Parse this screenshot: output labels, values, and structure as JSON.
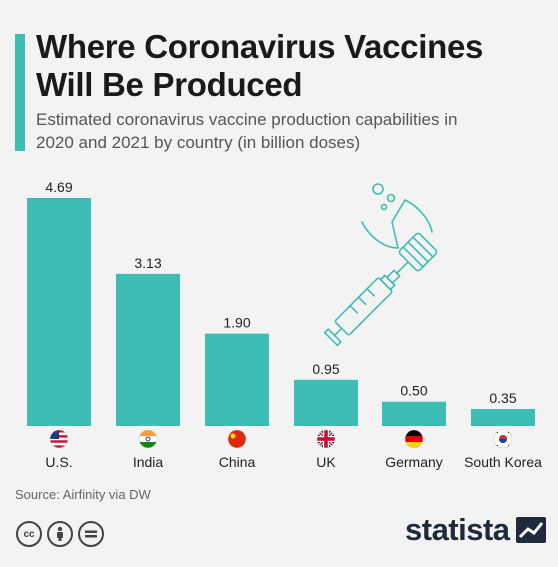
{
  "header": {
    "title_line1": "Where Coronavirus Vaccines",
    "title_line2": "Will Be Produced",
    "subtitle_line1": "Estimated coronavirus vaccine production capabilities in",
    "subtitle_line2": "2020 and 2021 by country (in billion doses)"
  },
  "colors": {
    "accent": "#3dbdb3",
    "bar": "#3dbdb3"
  },
  "chart_data": {
    "type": "bar",
    "categories": [
      "U.S.",
      "India",
      "China",
      "UK",
      "Germany",
      "South Korea"
    ],
    "values": [
      4.69,
      3.13,
      1.9,
      0.95,
      0.5,
      0.35
    ],
    "data_labels": [
      "4.69",
      "3.13",
      "1.90",
      "0.95",
      "0.50",
      "0.35"
    ],
    "flags": [
      "us-flag-icon",
      "india-flag-icon",
      "china-flag-icon",
      "uk-flag-icon",
      "germany-flag-icon",
      "south-korea-flag-icon"
    ],
    "title": "Where Coronavirus Vaccines Will Be Produced",
    "ylabel": "",
    "xlabel": "",
    "ylim": [
      0,
      4.69
    ],
    "grid": false,
    "legend": "none"
  },
  "footer": {
    "source": "Source: Airfinity via DW",
    "brand": "statista",
    "license_icons": [
      "cc-icon",
      "by-icon",
      "nd-icon"
    ]
  }
}
